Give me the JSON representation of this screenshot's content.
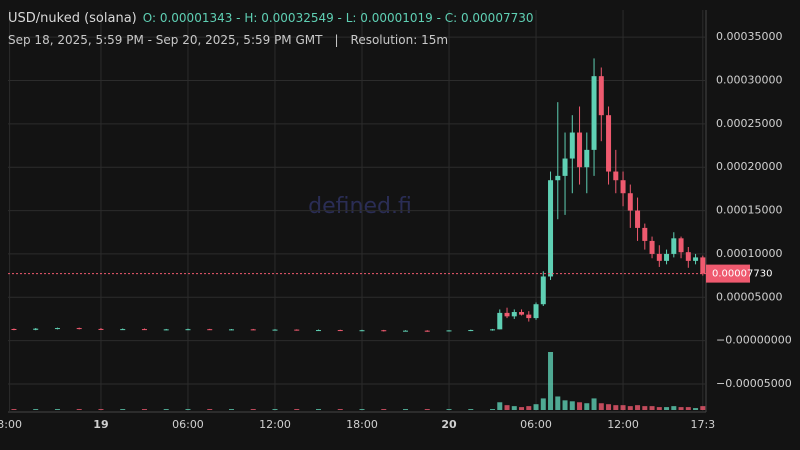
{
  "chart_data": {
    "type": "candlestick",
    "title": "USD/nuked (solana)",
    "ohlc_label": "O: 0.00001343 - H: 0.00032549 - L: 0.00001019 - C: 0.00007730",
    "subtitle": "Sep 18, 2025, 5:59 PM - Sep 20, 2025, 5:59 PM GMT",
    "separator": "|",
    "resolution": "Resolution: 15m",
    "watermark": "defined.fi",
    "up_color": "#5fd0b4",
    "down_color": "#ef5a6f",
    "grid": true,
    "xlim": [
      -6.41,
      41.72
    ],
    "ylim": [
      -8.23e-05,
      0.0003813
    ],
    "xticks": [
      {
        "value": -6.3,
        "label": "3:00"
      },
      {
        "value": 0,
        "label": "19"
      },
      {
        "value": 6,
        "label": "06:00"
      },
      {
        "value": 12,
        "label": "12:00"
      },
      {
        "value": 18,
        "label": "18:00"
      },
      {
        "value": 24,
        "label": "20"
      },
      {
        "value": 30,
        "label": "06:00"
      },
      {
        "value": 36,
        "label": "12:00"
      },
      {
        "value": 41.5,
        "label": "17:3"
      }
    ],
    "yticks": [
      {
        "value": 0.00035,
        "label": "0.00035000"
      },
      {
        "value": 0.0003,
        "label": "0.00030000"
      },
      {
        "value": 0.00025,
        "label": "0.00025000"
      },
      {
        "value": 0.0002,
        "label": "0.00020000"
      },
      {
        "value": 0.00015,
        "label": "0.00015000"
      },
      {
        "value": 0.0001,
        "label": "0.00010000"
      },
      {
        "value": 5e-05,
        "label": "0.00005000"
      },
      {
        "value": 0,
        "label": "−0.00000000"
      },
      {
        "value": -5e-05,
        "label": "−0.00005000"
      }
    ],
    "last_price": {
      "value": 7.73e-05,
      "label": "0.00007730"
    },
    "x": [
      -6,
      -4.5,
      -3,
      -1.5,
      0,
      1.5,
      3,
      4.5,
      6,
      7.5,
      9,
      10.5,
      12,
      13.5,
      15,
      16.5,
      18,
      19.5,
      21,
      22.5,
      24,
      25.5,
      27,
      27.5,
      28,
      28.5,
      29,
      29.5,
      30,
      30.5,
      31,
      31.5,
      32,
      32.5,
      33,
      33.5,
      34,
      34.5,
      35,
      35.5,
      36,
      36.5,
      37,
      37.5,
      38,
      38.5,
      39,
      39.5,
      40,
      40.5,
      41,
      41.5
    ],
    "ohlc": [
      [
        1.343e-05,
        1.4e-05,
        1.2e-05,
        1.25e-05
      ],
      [
        1.25e-05,
        1.45e-05,
        1.2e-05,
        1.38e-05
      ],
      [
        1.38e-05,
        1.5e-05,
        1.3e-05,
        1.45e-05
      ],
      [
        1.45e-05,
        1.5e-05,
        1.3e-05,
        1.35e-05
      ],
      [
        1.35e-05,
        1.45e-05,
        1.25e-05,
        1.3e-05
      ],
      [
        1.3e-05,
        1.4e-05,
        1.25e-05,
        1.33e-05
      ],
      [
        1.33e-05,
        1.4e-05,
        1.25e-05,
        1.28e-05
      ],
      [
        1.28e-05,
        1.35e-05,
        1.2e-05,
        1.3e-05
      ],
      [
        1.3e-05,
        1.38e-05,
        1.22e-05,
        1.32e-05
      ],
      [
        1.32e-05,
        1.36e-05,
        1.25e-05,
        1.28e-05
      ],
      [
        1.28e-05,
        1.34e-05,
        1.2e-05,
        1.3e-05
      ],
      [
        1.3e-05,
        1.35e-05,
        1.22e-05,
        1.25e-05
      ],
      [
        1.25e-05,
        1.32e-05,
        1.18e-05,
        1.27e-05
      ],
      [
        1.27e-05,
        1.3e-05,
        1.15e-05,
        1.2e-05
      ],
      [
        1.2e-05,
        1.28e-05,
        1.15e-05,
        1.22e-05
      ],
      [
        1.22e-05,
        1.26e-05,
        1.12e-05,
        1.18e-05
      ],
      [
        1.18e-05,
        1.25e-05,
        1.1e-05,
        1.2e-05
      ],
      [
        1.2e-05,
        1.24e-05,
        1.05e-05,
        1.12e-05
      ],
      [
        1.12e-05,
        1.2e-05,
        1.05e-05,
        1.15e-05
      ],
      [
        1.15e-05,
        1.2e-05,
        1.019e-05,
        1.1e-05
      ],
      [
        1.1e-05,
        1.2e-05,
        1.05e-05,
        1.18e-05
      ],
      [
        1.18e-05,
        1.26e-05,
        1.1e-05,
        1.22e-05
      ],
      [
        1.22e-05,
        1.35e-05,
        1.15e-05,
        1.3e-05
      ],
      [
        1.3e-05,
        3.6e-05,
        1.3e-05,
        3.2e-05
      ],
      [
        3.2e-05,
        3.8e-05,
        2.6e-05,
        2.8e-05
      ],
      [
        2.8e-05,
        3.6e-05,
        2.5e-05,
        3.3e-05
      ],
      [
        3.3e-05,
        3.6e-05,
        2.9e-05,
        3e-05
      ],
      [
        3e-05,
        3.4e-05,
        2.2e-05,
        2.6e-05
      ],
      [
        2.6e-05,
        4.4e-05,
        2.4e-05,
        4.2e-05
      ],
      [
        4.2e-05,
        8e-05,
        4e-05,
        7.4e-05
      ],
      [
        7.4e-05,
        0.000195,
        7e-05,
        0.000185
      ],
      [
        0.000185,
        0.000275,
        0.00014,
        0.00019
      ],
      [
        0.00019,
        0.00024,
        0.000145,
        0.00021
      ],
      [
        0.00021,
        0.00026,
        0.00017,
        0.00024
      ],
      [
        0.00024,
        0.00027,
        0.00018,
        0.0002
      ],
      [
        0.0002,
        0.00024,
        0.00017,
        0.00022
      ],
      [
        0.00022,
        0.00032549,
        0.00019,
        0.000305
      ],
      [
        0.000305,
        0.000315,
        0.00023,
        0.00026
      ],
      [
        0.00026,
        0.00027,
        0.00018,
        0.000195
      ],
      [
        0.000195,
        0.00022,
        0.00017,
        0.000185
      ],
      [
        0.000185,
        0.000195,
        0.000155,
        0.00017
      ],
      [
        0.00017,
        0.00018,
        0.00013,
        0.00015
      ],
      [
        0.00015,
        0.000165,
        0.000115,
        0.00013
      ],
      [
        0.00013,
        0.000135,
        0.000105,
        0.000115
      ],
      [
        0.000115,
        0.00012,
        9.5e-05,
        0.0001
      ],
      [
        0.0001,
        0.00011,
        8.5e-05,
        9.2e-05
      ],
      [
        9.2e-05,
        0.000105,
        8.8e-05,
        0.0001
      ],
      [
        0.0001,
        0.000125,
        9.6e-05,
        0.000118
      ],
      [
        0.000118,
        0.00012,
        9.5e-05,
        0.000102
      ],
      [
        0.000102,
        0.000108,
        8.4e-05,
        9.2e-05
      ],
      [
        9.2e-05,
        0.0001,
        8.8e-05,
        9.6e-05
      ],
      [
        9.6e-05,
        9.8e-05,
        7.5e-05,
        7.73e-05
      ]
    ],
    "volume": [
      1,
      1,
      1,
      1,
      1,
      1,
      1,
      1,
      1,
      1,
      1,
      1,
      1,
      1,
      1,
      1,
      1,
      1,
      1,
      1,
      1,
      1,
      1,
      8,
      5,
      4,
      3,
      4,
      6,
      12,
      60,
      14,
      10,
      9,
      8,
      7,
      12,
      7,
      6,
      5,
      5,
      4,
      5,
      4,
      4,
      3,
      3,
      4,
      3,
      3,
      2,
      4
    ]
  }
}
